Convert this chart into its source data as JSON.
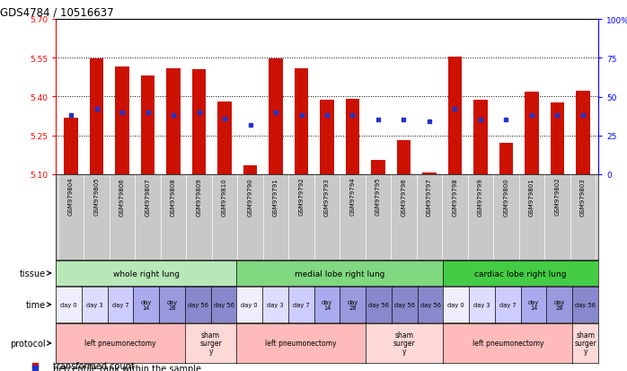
{
  "title": "GDS4784 / 10516637",
  "samples": [
    "GSM979804",
    "GSM979805",
    "GSM979806",
    "GSM979807",
    "GSM979808",
    "GSM979809",
    "GSM979810",
    "GSM979790",
    "GSM979791",
    "GSM979792",
    "GSM979793",
    "GSM979794",
    "GSM979795",
    "GSM979796",
    "GSM979797",
    "GSM979798",
    "GSM979799",
    "GSM979800",
    "GSM979801",
    "GSM979802",
    "GSM979803"
  ],
  "bar_values": [
    5.32,
    5.548,
    5.515,
    5.48,
    5.51,
    5.505,
    5.38,
    5.135,
    5.548,
    5.51,
    5.388,
    5.39,
    5.155,
    5.232,
    5.107,
    5.553,
    5.388,
    5.223,
    5.42,
    5.378,
    5.422
  ],
  "percentile_values": [
    38,
    42,
    40,
    40,
    38,
    40,
    36,
    32,
    40,
    38,
    38,
    38,
    35,
    35,
    34,
    42,
    35,
    35,
    38,
    38,
    38
  ],
  "baseline": 5.1,
  "ylim_left": [
    5.1,
    5.7
  ],
  "ylim_right": [
    0,
    100
  ],
  "yticks_left": [
    5.1,
    5.25,
    5.4,
    5.55,
    5.7
  ],
  "yticks_right": [
    0,
    25,
    50,
    75,
    100
  ],
  "ytick_labels_right": [
    "0",
    "25",
    "50",
    "75",
    "100%"
  ],
  "bar_color": "#cc1100",
  "dot_color": "#2233cc",
  "tissue_groups": [
    {
      "label": "whole right lung",
      "start": 0,
      "end": 7,
      "color": "#b8e8b8"
    },
    {
      "label": "medial lobe right lung",
      "start": 7,
      "end": 15,
      "color": "#80d880"
    },
    {
      "label": "cardiac lobe right lung",
      "start": 15,
      "end": 21,
      "color": "#44cc44"
    }
  ],
  "time_colors": [
    "#eeeeff",
    "#ddddff",
    "#ccccff",
    "#aaaaee",
    "#9999dd",
    "#8888cc",
    "#8888cc",
    "#eeeeff",
    "#ddddff",
    "#ccccff",
    "#aaaaee",
    "#9999dd",
    "#8888cc",
    "#8888cc",
    "#8888cc",
    "#eeeeff",
    "#ddddff",
    "#ccccff",
    "#aaaaee",
    "#9999dd",
    "#8888cc"
  ],
  "time_labels": [
    "day 0",
    "day 3",
    "day 7",
    "day\n14",
    "day\n28",
    "day 56",
    "day 56",
    "day 0",
    "day 3",
    "day 7",
    "day\n14",
    "day\n28",
    "day 56",
    "day 56",
    "day 56",
    "day 0",
    "day 3",
    "day 7",
    "day\n14",
    "day\n28",
    "day 56"
  ],
  "protocol_groups": [
    {
      "label": "left pneumonectomy",
      "start": 0,
      "end": 5,
      "color": "#ffbbbb"
    },
    {
      "label": "sham\nsurger\ny",
      "start": 5,
      "end": 7,
      "color": "#ffd8d8"
    },
    {
      "label": "left pneumonectomy",
      "start": 7,
      "end": 12,
      "color": "#ffbbbb"
    },
    {
      "label": "sham\nsurger\ny",
      "start": 12,
      "end": 15,
      "color": "#ffd8d8"
    },
    {
      "label": "left pneumonectomy",
      "start": 15,
      "end": 20,
      "color": "#ffbbbb"
    },
    {
      "label": "sham\nsurger\ny",
      "start": 20,
      "end": 21,
      "color": "#ffd8d8"
    }
  ],
  "sample_bg": "#c8c8c8",
  "legend_red_label": "transformed count",
  "legend_blue_label": "percentile rank within the sample",
  "dotted_lines": [
    5.25,
    5.4,
    5.55
  ]
}
